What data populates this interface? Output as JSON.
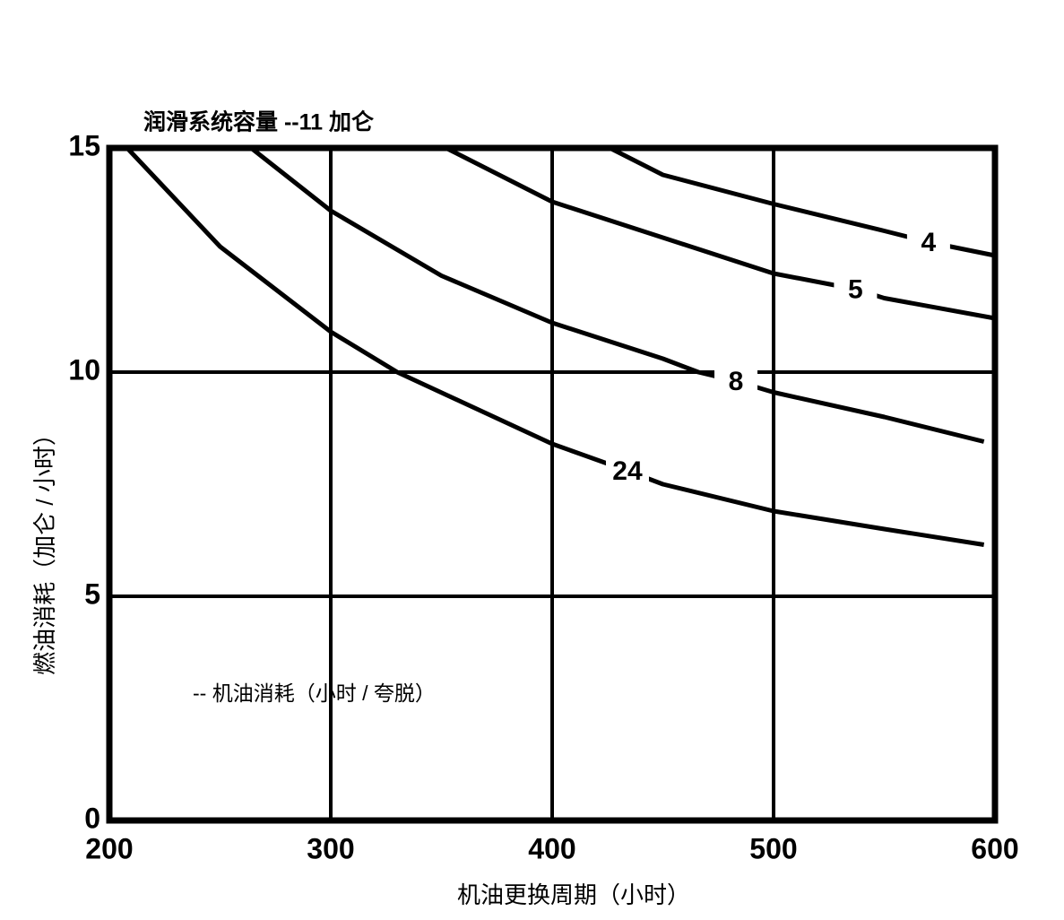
{
  "chart_data": {
    "type": "line",
    "title": "润滑系统容量 --11 加仑",
    "annotation": "-- 机油消耗（小时 / 夸脱）",
    "x_label": "机油更换周期（小时）",
    "y_label": "燃油消耗（加仑 / 小时）",
    "xlim": [
      200,
      600
    ],
    "xticks": [
      200,
      300,
      400,
      500,
      600
    ],
    "ylim": [
      0,
      15
    ],
    "yticks": [
      0,
      5,
      10,
      15
    ],
    "grid": true,
    "series": [
      {
        "name": "4",
        "color": "#000000",
        "x": [
          426,
          450,
          500,
          550,
          570,
          600
        ],
        "values": [
          15,
          14.4,
          13.75,
          13.15,
          12.9,
          12.6
        ]
      },
      {
        "name": "5",
        "color": "#000000",
        "x": [
          352,
          400,
          450,
          500,
          537,
          550,
          600
        ],
        "values": [
          15,
          13.8,
          13.0,
          12.2,
          11.85,
          11.65,
          11.2
        ]
      },
      {
        "name": "8",
        "color": "#000000",
        "x": [
          264,
          300,
          350,
          400,
          450,
          466,
          483,
          500,
          550,
          595
        ],
        "values": [
          15,
          13.6,
          12.15,
          11.1,
          10.3,
          10,
          9.8,
          9.55,
          9.0,
          8.45
        ]
      },
      {
        "name": "24",
        "color": "#000000",
        "x": [
          208,
          250,
          300,
          330,
          400,
          434,
          450,
          500,
          550,
          595
        ],
        "values": [
          15,
          12.8,
          10.9,
          10,
          8.4,
          7.8,
          7.5,
          6.9,
          6.5,
          6.15
        ]
      }
    ]
  }
}
